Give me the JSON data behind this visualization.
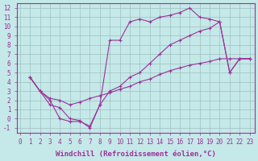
{
  "xlabel": "Windchill (Refroidissement éolien,°C)",
  "xlim": [
    -0.3,
    23.5
  ],
  "ylim": [
    -1.5,
    12.5
  ],
  "xticks": [
    0,
    1,
    2,
    3,
    4,
    5,
    6,
    7,
    8,
    9,
    10,
    11,
    12,
    13,
    14,
    15,
    16,
    17,
    18,
    19,
    20,
    21,
    22,
    23
  ],
  "yticks": [
    -1,
    0,
    1,
    2,
    3,
    4,
    5,
    6,
    7,
    8,
    9,
    10,
    11,
    12
  ],
  "bg_color": "#c5e8e8",
  "line_color": "#993399",
  "grid_color": "#9dbfbf",
  "lines": [
    {
      "x": [
        1,
        2,
        3,
        4,
        5,
        6,
        7,
        8,
        9,
        10,
        11,
        12,
        13,
        14,
        15,
        16,
        17,
        18,
        19,
        20,
        21,
        22,
        23
      ],
      "y": [
        4.5,
        3.0,
        2.2,
        2.0,
        1.5,
        1.8,
        2.2,
        2.5,
        2.8,
        3.2,
        3.5,
        4.0,
        4.3,
        4.8,
        5.2,
        5.5,
        5.8,
        6.0,
        6.2,
        6.5,
        6.5,
        6.5,
        6.5
      ]
    },
    {
      "x": [
        1,
        2,
        3,
        4,
        5,
        6,
        7,
        8,
        9,
        10,
        11,
        12,
        13,
        14,
        15,
        16,
        17,
        18,
        19,
        20,
        21,
        22,
        23
      ],
      "y": [
        4.5,
        3.0,
        2.0,
        0.0,
        -0.3,
        -0.3,
        -0.8,
        1.5,
        8.5,
        8.5,
        10.5,
        10.8,
        10.5,
        11.0,
        11.2,
        11.5,
        12.0,
        11.0,
        10.8,
        10.5,
        5.0,
        6.5,
        6.5
      ]
    },
    {
      "x": [
        1,
        2,
        3,
        4,
        5,
        6,
        7,
        8,
        9,
        10,
        11,
        12,
        13,
        14,
        15,
        16,
        17,
        18,
        19,
        20,
        21,
        22,
        23
      ],
      "y": [
        4.5,
        3.0,
        1.5,
        1.2,
        0.0,
        -0.2,
        -1.0,
        1.5,
        3.0,
        3.5,
        4.5,
        5.0,
        6.0,
        7.0,
        8.0,
        8.5,
        9.0,
        9.5,
        9.8,
        10.5,
        5.0,
        6.5,
        6.5
      ]
    }
  ],
  "tick_fontsize": 5.5,
  "label_fontsize": 6.5
}
